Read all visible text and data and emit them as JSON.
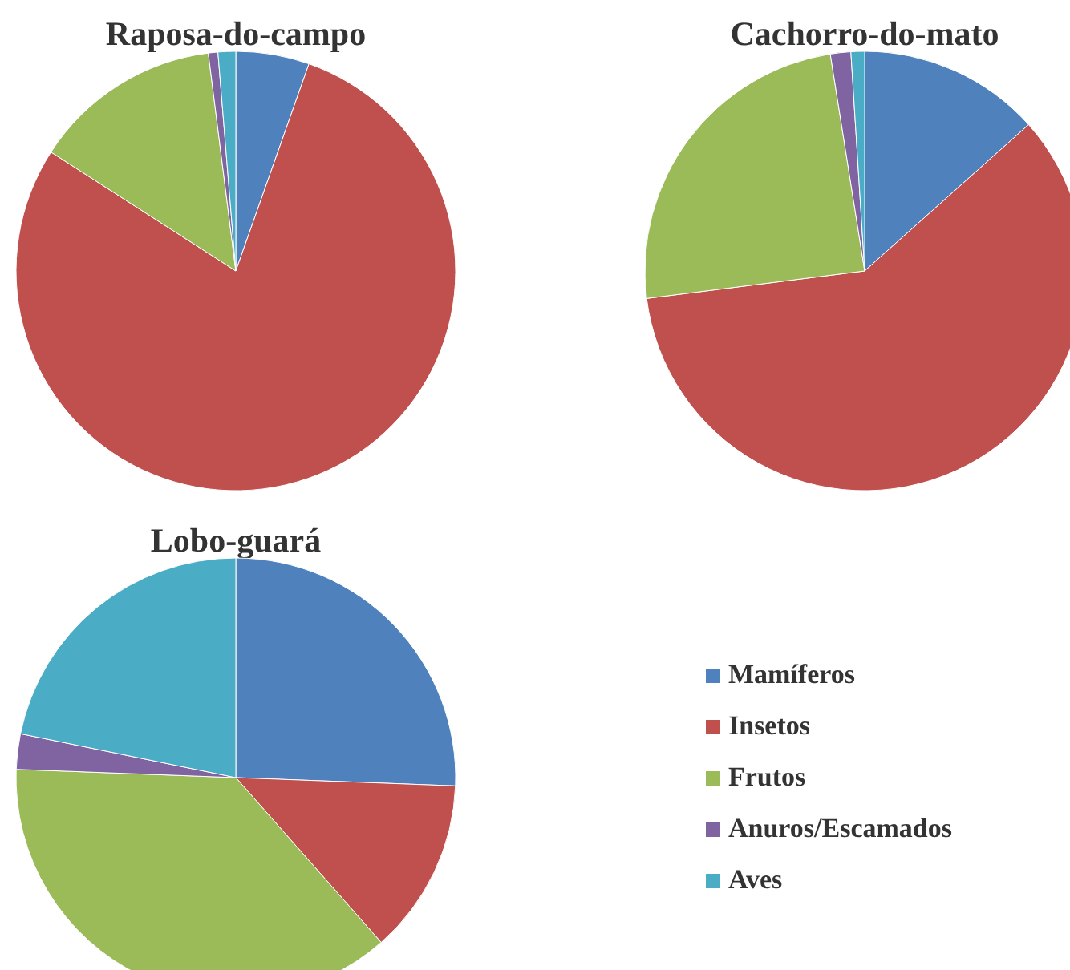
{
  "chart_data": [
    {
      "type": "pie",
      "title": "Raposa-do-campo",
      "categories": [
        null,
        null,
        null,
        null,
        null
      ],
      "values": [
        5.4,
        78.7,
        13.9,
        0.7,
        1.3
      ],
      "colors": [
        "#4f81bd",
        "#c0504d",
        "#9bbb59",
        "#8064a2",
        "#4bacc6"
      ],
      "legend": false
    },
    {
      "type": "pie",
      "title": "Cachorro-do-mato",
      "categories": [
        null,
        null,
        null,
        null,
        null
      ],
      "values": [
        13.4,
        59.6,
        24.5,
        1.5,
        1.0
      ],
      "colors": [
        "#4f81bd",
        "#c0504d",
        "#9bbb59",
        "#8064a2",
        "#4bacc6"
      ],
      "legend": false
    },
    {
      "type": "pie",
      "title": "Lobo-guará",
      "categories": [
        "Mamíferos",
        "Insetos",
        "Frutos",
        "Anuros/Escamados",
        "Aves"
      ],
      "values": [
        25.6,
        12.9,
        37.1,
        2.6,
        21.8
      ],
      "colors": [
        "#4f81bd",
        "#c0504d",
        "#9bbb59",
        "#8064a2",
        "#4bacc6"
      ],
      "legend": "right"
    }
  ]
}
